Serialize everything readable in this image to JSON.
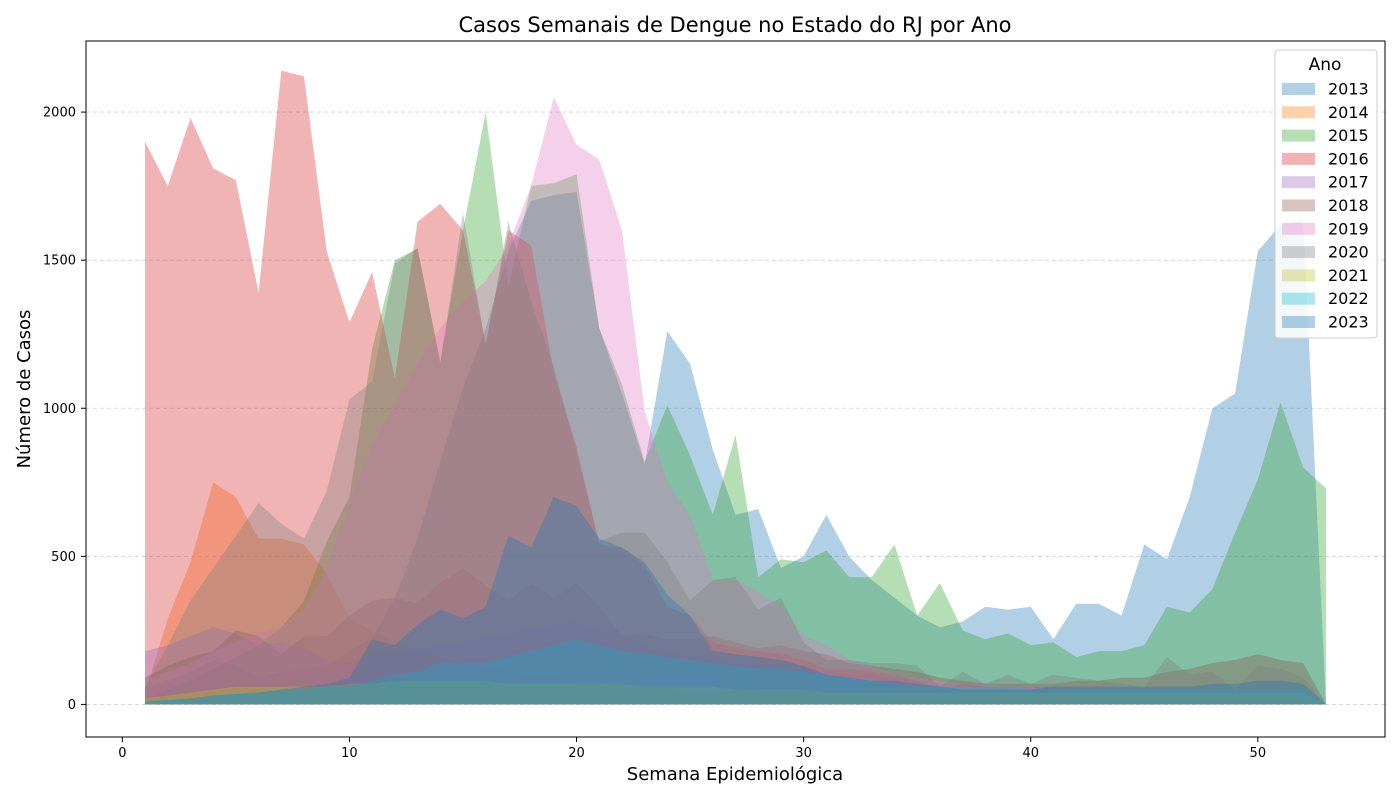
{
  "chart_data": {
    "type": "area",
    "title": "Casos Semanais de Dengue no Estado do RJ por Ano",
    "xlabel": "Semana Epidemiológica",
    "ylabel": "Número de Casos",
    "xlim": [
      -1.6,
      55.6
    ],
    "ylim": [
      -110,
      2240
    ],
    "xticks": [
      0,
      10,
      20,
      30,
      40,
      50
    ],
    "yticks": [
      0,
      500,
      1000,
      1500,
      2000
    ],
    "grid": "y-dashed",
    "legend": {
      "title": "Ano",
      "placement": "top-right"
    },
    "x": [
      1,
      2,
      3,
      4,
      5,
      6,
      7,
      8,
      9,
      10,
      11,
      12,
      13,
      14,
      15,
      16,
      17,
      18,
      19,
      20,
      21,
      22,
      23,
      24,
      25,
      26,
      27,
      28,
      29,
      30,
      31,
      32,
      33,
      34,
      35,
      36,
      37,
      38,
      39,
      40,
      41,
      42,
      43,
      44,
      45,
      46,
      47,
      48,
      49,
      50,
      51,
      52,
      53
    ],
    "series": [
      {
        "name": "2013",
        "color": "#1f77b4",
        "values": [
          60,
          80,
          110,
          150,
          130,
          90,
          110,
          120,
          130,
          180,
          220,
          360,
          560,
          820,
          1070,
          1270,
          1530,
          1700,
          1720,
          1730,
          1270,
          1050,
          810,
          1260,
          1150,
          860,
          640,
          660,
          460,
          500,
          640,
          500,
          420,
          360,
          300,
          260,
          280,
          330,
          320,
          330,
          220,
          340,
          340,
          300,
          540,
          490,
          700,
          1000,
          1050,
          1530,
          1620,
          1640,
          0
        ]
      },
      {
        "name": "2014",
        "color": "#ff7f0e",
        "values": [
          40,
          290,
          480,
          750,
          700,
          560,
          560,
          540,
          440,
          290,
          250,
          210,
          180,
          160,
          140,
          130,
          110,
          100,
          90,
          80,
          70,
          60,
          50,
          50,
          40,
          40,
          40,
          30,
          30,
          30,
          30,
          30,
          30,
          20,
          20,
          20,
          20,
          20,
          20,
          20,
          20,
          20,
          20,
          20,
          20,
          20,
          20,
          20,
          20,
          20,
          20,
          20,
          0
        ]
      },
      {
        "name": "2015",
        "color": "#2ca02c",
        "values": [
          20,
          50,
          80,
          120,
          160,
          200,
          260,
          350,
          550,
          700,
          1200,
          1500,
          1540,
          1160,
          1600,
          2000,
          1410,
          1750,
          1760,
          1790,
          1270,
          1080,
          820,
          1010,
          840,
          640,
          910,
          430,
          490,
          480,
          520,
          430,
          430,
          540,
          300,
          410,
          250,
          220,
          240,
          200,
          210,
          160,
          180,
          180,
          200,
          330,
          310,
          390,
          580,
          760,
          1020,
          800,
          730
        ]
      },
      {
        "name": "2016",
        "color": "#d62728",
        "values": [
          1900,
          1750,
          1980,
          1810,
          1770,
          1390,
          2140,
          2120,
          1530,
          1290,
          1460,
          1100,
          1630,
          1690,
          1600,
          1220,
          1600,
          1550,
          1120,
          870,
          540,
          530,
          470,
          330,
          300,
          210,
          190,
          180,
          170,
          150,
          120,
          120,
          110,
          100,
          80,
          50,
          70,
          60,
          50,
          50,
          50,
          40,
          40,
          40,
          40,
          40,
          40,
          40,
          40,
          40,
          40,
          40,
          0
        ]
      },
      {
        "name": "2017",
        "color": "#9467bd",
        "values": [
          180,
          200,
          230,
          260,
          240,
          200,
          210,
          190,
          150,
          140,
          170,
          180,
          190,
          200,
          210,
          230,
          240,
          260,
          270,
          280,
          250,
          240,
          200,
          180,
          160,
          150,
          140,
          130,
          130,
          120,
          110,
          100,
          100,
          90,
          80,
          70,
          60,
          60,
          60,
          60,
          60,
          50,
          50,
          50,
          50,
          50,
          50,
          50,
          50,
          50,
          50,
          50,
          0
        ]
      },
      {
        "name": "2018",
        "color": "#8c564b",
        "values": [
          90,
          130,
          160,
          180,
          250,
          230,
          170,
          230,
          230,
          300,
          350,
          360,
          340,
          410,
          460,
          400,
          350,
          410,
          360,
          410,
          330,
          230,
          240,
          220,
          220,
          230,
          210,
          190,
          200,
          180,
          170,
          140,
          130,
          120,
          110,
          90,
          80,
          70,
          70,
          70,
          70,
          80,
          80,
          90,
          90,
          110,
          120,
          140,
          150,
          170,
          150,
          140,
          0
        ]
      },
      {
        "name": "2019",
        "color": "#e377c2",
        "values": [
          80,
          110,
          140,
          180,
          210,
          240,
          260,
          320,
          460,
          680,
          880,
          1010,
          1150,
          1270,
          1360,
          1430,
          1550,
          1750,
          2050,
          1890,
          1840,
          1600,
          990,
          750,
          640,
          420,
          420,
          380,
          330,
          230,
          200,
          150,
          130,
          100,
          90,
          80,
          70,
          70,
          60,
          60,
          50,
          50,
          50,
          50,
          50,
          50,
          50,
          50,
          50,
          50,
          50,
          50,
          0
        ]
      },
      {
        "name": "2020",
        "color": "#7f7f7f",
        "values": [
          60,
          200,
          350,
          460,
          570,
          680,
          610,
          560,
          720,
          1030,
          1090,
          1490,
          1540,
          1150,
          1660,
          1210,
          1630,
          1360,
          1140,
          850,
          550,
          580,
          580,
          480,
          350,
          420,
          430,
          320,
          360,
          210,
          150,
          150,
          140,
          140,
          130,
          60,
          110,
          70,
          100,
          70,
          100,
          90,
          80,
          70,
          60,
          160,
          100,
          110,
          50,
          130,
          120,
          90,
          0
        ]
      },
      {
        "name": "2021",
        "color": "#bcbd22",
        "values": [
          20,
          30,
          40,
          50,
          60,
          60,
          60,
          60,
          60,
          70,
          70,
          80,
          80,
          80,
          80,
          80,
          70,
          70,
          70,
          70,
          70,
          70,
          60,
          60,
          60,
          60,
          50,
          50,
          50,
          50,
          40,
          40,
          40,
          40,
          40,
          40,
          40,
          40,
          40,
          40,
          40,
          40,
          40,
          40,
          40,
          40,
          40,
          40,
          40,
          40,
          40,
          40,
          0
        ]
      },
      {
        "name": "2022",
        "color": "#17becf",
        "values": [
          10,
          20,
          20,
          30,
          40,
          40,
          50,
          50,
          60,
          60,
          80,
          100,
          110,
          140,
          140,
          140,
          160,
          180,
          200,
          220,
          200,
          180,
          170,
          160,
          150,
          140,
          130,
          120,
          120,
          110,
          100,
          90,
          80,
          70,
          60,
          60,
          60,
          60,
          60,
          50,
          50,
          50,
          50,
          50,
          50,
          50,
          50,
          50,
          50,
          50,
          50,
          50,
          0
        ]
      },
      {
        "name": "2023",
        "color": "#1f77b4",
        "values": [
          10,
          15,
          20,
          30,
          35,
          40,
          50,
          60,
          70,
          90,
          220,
          200,
          270,
          320,
          290,
          330,
          570,
          530,
          700,
          670,
          560,
          530,
          480,
          370,
          300,
          180,
          170,
          160,
          150,
          130,
          100,
          90,
          80,
          80,
          70,
          60,
          50,
          50,
          50,
          50,
          60,
          60,
          60,
          60,
          60,
          60,
          60,
          70,
          70,
          80,
          80,
          70,
          0
        ]
      }
    ]
  }
}
